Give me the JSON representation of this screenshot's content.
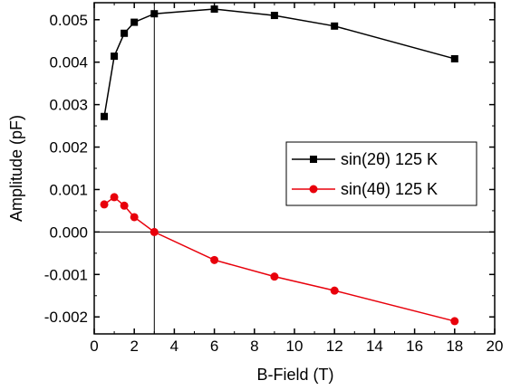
{
  "chart_data": {
    "type": "line",
    "xlabel": "B-Field (T)",
    "ylabel": "Amplitude (pF)",
    "xlim": [
      0,
      20
    ],
    "ylim": [
      -0.0024,
      0.0054
    ],
    "xticks": [
      0,
      2,
      4,
      6,
      8,
      10,
      12,
      14,
      16,
      18,
      20
    ],
    "xtick_labels": [
      "0",
      "2",
      "4",
      "6",
      "8",
      "10",
      "12",
      "14",
      "16",
      "18",
      "20"
    ],
    "yticks": [
      -0.002,
      -0.001,
      0,
      0.001,
      0.002,
      0.003,
      0.004,
      0.005
    ],
    "ytick_labels": [
      "-0.002",
      "-0.001",
      "0.000",
      "0.001",
      "0.002",
      "0.003",
      "0.004",
      "0.005"
    ],
    "grid": false,
    "legend": "right",
    "reference_lines": {
      "x": 3,
      "y": 0
    },
    "series": [
      {
        "name": "sin(2θ) 125 K",
        "color": "#000000",
        "marker": "square",
        "x": [
          0.5,
          1,
          1.5,
          2,
          3,
          6,
          9,
          12,
          18
        ],
        "y": [
          0.00272,
          0.00414,
          0.00468,
          0.00494,
          0.00514,
          0.00525,
          0.0051,
          0.00485,
          0.00408
        ]
      },
      {
        "name": "sin(4θ) 125 K",
        "color": "#e8000b",
        "marker": "circle",
        "x": [
          0.5,
          1,
          1.5,
          2,
          3,
          6,
          9,
          12,
          18
        ],
        "y": [
          0.00065,
          0.00082,
          0.00062,
          0.00035,
          0.0,
          -0.00066,
          -0.00105,
          -0.00138,
          -0.0021
        ]
      }
    ]
  }
}
